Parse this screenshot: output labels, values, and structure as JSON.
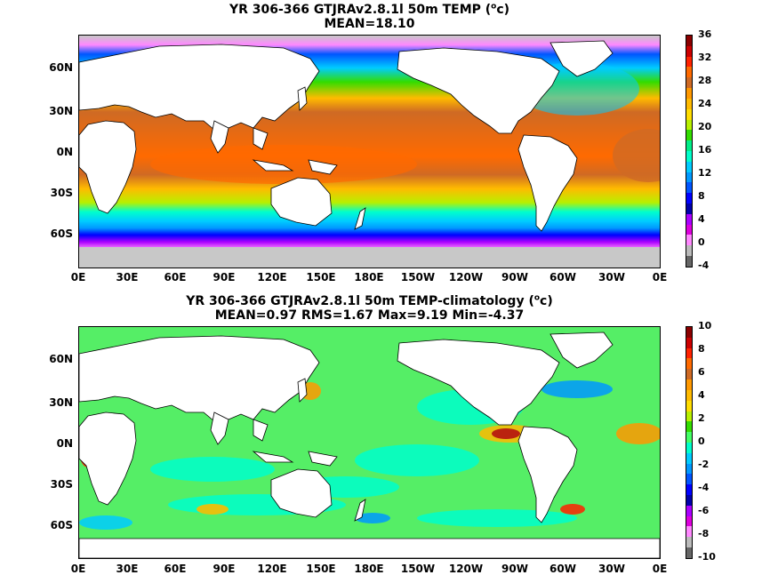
{
  "top": {
    "title_line1": "YR 306-366 GTJRAv2.8.1l 50m TEMP (",
    "title_unit_sup": "o",
    "title_unit_tail": "c)",
    "title_line2": "MEAN=18.10",
    "colorbar_labels": [
      "36",
      "32",
      "28",
      "24",
      "20",
      "16",
      "12",
      "8",
      "4",
      "0",
      "-4"
    ],
    "colorbar_colors": [
      "#8b0000",
      "#cc0000",
      "#ff2200",
      "#ff6a00",
      "#cf6a24",
      "#ff9900",
      "#ffbb00",
      "#ffdd00",
      "#b8f000",
      "#33dd00",
      "#00ee88",
      "#00ffcc",
      "#00ccff",
      "#0099ff",
      "#0055ff",
      "#0000ff",
      "#0000aa",
      "#aa00ff",
      "#dd00dd",
      "#ff88ff",
      "#bbbbbb",
      "#666666"
    ]
  },
  "bottom": {
    "title_line1": "YR 306-366 GTJRAv2.8.1l 50m TEMP-climatology (",
    "title_unit_sup": "o",
    "title_unit_tail": "c)",
    "title_line2": "MEAN=0.97   RMS=1.67   Max=9.19   Min=-4.37",
    "colorbar_labels": [
      "10",
      "8",
      "6",
      "4",
      "2",
      "0",
      "-2",
      "-4",
      "-6",
      "-8",
      "-10"
    ],
    "colorbar_colors": [
      "#8b0000",
      "#cc0000",
      "#ff2200",
      "#ff6a00",
      "#cf6a24",
      "#ff9900",
      "#ffbb00",
      "#ffdd00",
      "#b8f000",
      "#33dd00",
      "#44ff66",
      "#00ffcc",
      "#00ccff",
      "#0099ff",
      "#0055ff",
      "#0000ff",
      "#0000aa",
      "#aa00ff",
      "#dd00dd",
      "#ff88ff",
      "#bbbbbb",
      "#666666"
    ]
  },
  "axes": {
    "lat_labels": [
      "60N",
      "30N",
      "0N",
      "30S",
      "60S"
    ],
    "lon_labels": [
      "0E",
      "30E",
      "60E",
      "90E",
      "120E",
      "150E",
      "180E",
      "150W",
      "120W",
      "90W",
      "60W",
      "30W",
      "0E"
    ]
  },
  "colors": {
    "land": "#ffffff",
    "ice": "#c8c8c8",
    "anomaly_background": "#55ee66"
  }
}
